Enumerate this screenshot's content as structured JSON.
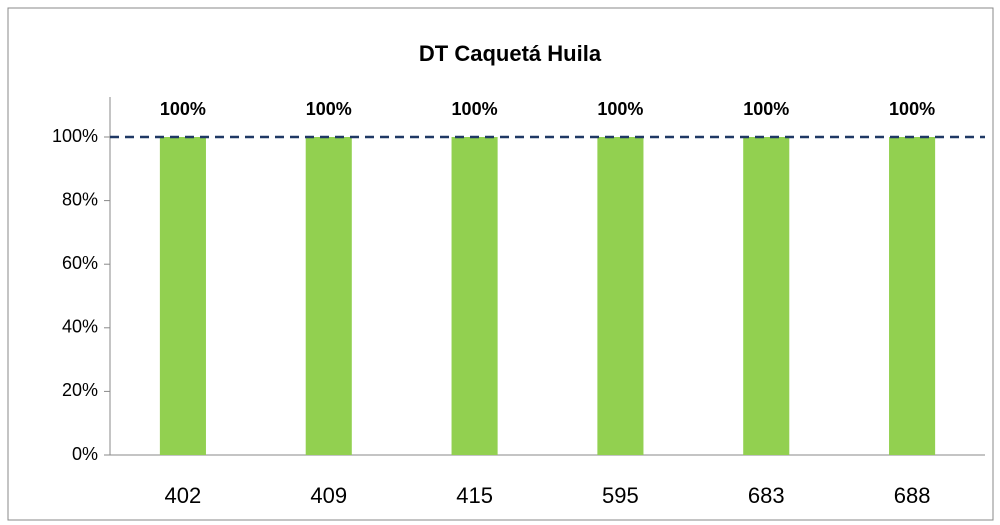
{
  "chart_data": {
    "type": "bar",
    "title": "DT Caquetá Huila",
    "categories": [
      "402",
      "409",
      "415",
      "595",
      "683",
      "688"
    ],
    "values": [
      100,
      100,
      100,
      100,
      100,
      100
    ],
    "value_labels": [
      "100%",
      "100%",
      "100%",
      "100%",
      "100%",
      "100%"
    ],
    "color": "#92d050",
    "ylim": [
      0,
      100
    ],
    "yticks": [
      {
        "value": 0,
        "label": "0%"
      },
      {
        "value": 20,
        "label": "20%"
      },
      {
        "value": 40,
        "label": "40%"
      },
      {
        "value": 60,
        "label": "60%"
      },
      {
        "value": 80,
        "label": "80%"
      },
      {
        "value": 100,
        "label": "100%"
      }
    ],
    "reference_line": {
      "value": 100,
      "color": "#1f3864"
    }
  }
}
